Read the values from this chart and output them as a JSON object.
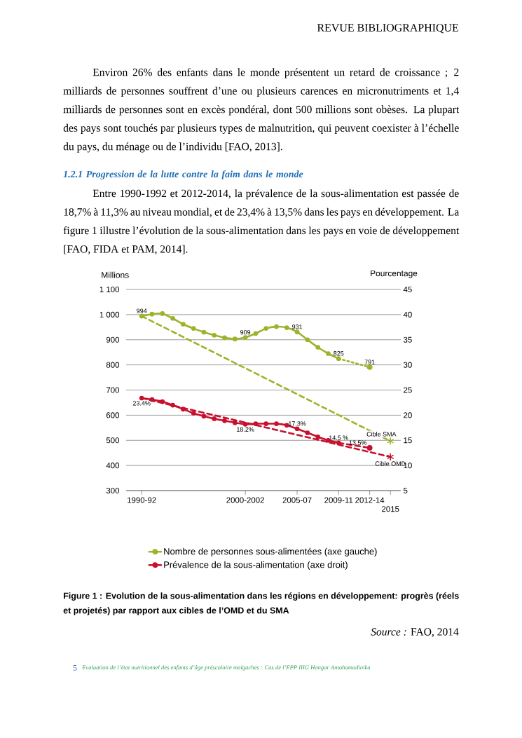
{
  "chart_data": {
    "type": "line",
    "title": "Figure 1 : Evolution de la sous-alimentation dans les régions en développement: progrès (réels et projetés) par rapport aux cibles de l’OMD et du SMA",
    "ylabel": "Millions",
    "y2label": "Pourcentage",
    "annotations": [
      "REVUE BIBLIOGRAPHIQUE",
      "Environ 26% des enfants dans le monde présentent un retard de croissance ; 2 milliards de personnes souffrent d’une ou plusieurs carences en micronutriments et 1,4 milliards de personnes sont en excès pondéral, dont 500 millions sont obèses. La plupart des pays sont touchés par plusieurs types de malnutrition, qui peuvent coexister à l’échelle du pays, du ménage ou de l’individu [FAO, 2013].",
      "1.2.1 Progression de la lutte contre la faim dans le monde",
      "Entre 1990-1992 et 2012-2014, la prévalence de la sous-alimentation est passée de 18,7% à 11,3% au niveau mondial, et de 23,4% à 13,5% dans les pays en développement. La figure 1 illustre l’évolution de la sous-alimentation dans les pays en voie de développement [FAO, FIDA et PAM, 2014].",
      "*Source :* FAO, 2014",
      "5",
      "Evaluation de l’état nutritionnel des enfants d’âge préscolaire malgaches : Cas de l’EPP IIIG Hangar Antohomadinika",
      {
        "text": "Cible SMA",
        "x": "2015",
        "y": 497
      },
      {
        "text": "Cible OMD",
        "x": "2015",
        "y": 434
      }
    ],
    "categories": [
      null,
      "1990-92",
      null,
      null,
      null,
      null,
      null,
      null,
      null,
      null,
      null,
      "2000-2002",
      null,
      null,
      null,
      null,
      "2005-07",
      null,
      null,
      null,
      "2009-11",
      null,
      null,
      "2012-14",
      null,
      "2015",
      null
    ],
    "series": [
      {
        "name": "Nombre de personnes sous-alimentées (axe gauche)",
        "color": "#9bb52a",
        "values": [
          null,
          994,
          1002,
          1004,
          985,
          962,
          945,
          930,
          918,
          908,
          903,
          909,
          925,
          945,
          952,
          948,
          931,
          900,
          870,
          845,
          825,
          null,
          null,
          null,
          null,
          null,
          null
        ],
        "value_labels": [
          null,
          "994",
          null,
          null,
          null,
          null,
          null,
          null,
          null,
          null,
          null,
          "909",
          null,
          null,
          null,
          null,
          "931",
          null,
          null,
          null,
          "825",
          null,
          null,
          null,
          null,
          null,
          null
        ]
      },
      {
        "color": "#9bb52a",
        "values": [
          null,
          null,
          null,
          null,
          null,
          null,
          null,
          null,
          null,
          null,
          null,
          null,
          null,
          null,
          null,
          null,
          null,
          null,
          null,
          null,
          825,
          null,
          null,
          791,
          null,
          null,
          null
        ],
        "value_labels": [
          null,
          null,
          null,
          null,
          null,
          null,
          null,
          null,
          null,
          null,
          null,
          null,
          null,
          null,
          null,
          null,
          null,
          null,
          null,
          null,
          null,
          null,
          null,
          "791",
          null,
          null,
          null
        ],
        "line_style": "dotted"
      },
      {
        "color": "#9bb52a",
        "values": [
          null,
          994,
          null,
          null,
          null,
          null,
          null,
          null,
          null,
          null,
          null,
          null,
          null,
          null,
          null,
          null,
          null,
          null,
          null,
          null,
          null,
          null,
          null,
          null,
          null,
          497,
          null
        ],
        "line_style": "dashed",
        "marker": "cross"
      },
      {
        "name": "Prévalence de la sous-alimentation (axe droit)",
        "color": "#c8102e",
        "axis": "y2",
        "values": [
          null,
          23.4,
          23.1,
          22.7,
          22.0,
          21.2,
          20.4,
          19.8,
          19.3,
          18.9,
          18.5,
          18.2,
          18.3,
          18.3,
          18.3,
          18.0,
          17.3,
          16.5,
          15.7,
          15.0,
          14.5,
          null,
          null,
          null,
          null,
          null,
          null
        ],
        "value_labels": [
          null,
          "23.4%",
          null,
          null,
          null,
          null,
          null,
          null,
          null,
          null,
          null,
          "18.2%",
          null,
          null,
          null,
          null,
          "17.3%",
          null,
          null,
          null,
          "14.5 %",
          null,
          null,
          null,
          null,
          null,
          null
        ]
      },
      {
        "color": "#c8102e",
        "axis": "y2",
        "values": [
          null,
          null,
          null,
          null,
          null,
          null,
          null,
          null,
          null,
          null,
          null,
          null,
          null,
          null,
          null,
          null,
          null,
          null,
          null,
          null,
          14.5,
          null,
          null,
          13.5,
          null,
          null,
          null
        ],
        "value_labels": [
          null,
          null,
          null,
          null,
          null,
          null,
          null,
          null,
          null,
          null,
          null,
          null,
          null,
          null,
          null,
          null,
          null,
          null,
          null,
          null,
          null,
          null,
          null,
          "13.5%",
          null,
          null,
          null
        ],
        "line_style": "dashed"
      },
      {
        "color": "#c8102e",
        "axis": "y2",
        "values": [
          null,
          23.4,
          null,
          null,
          null,
          null,
          null,
          null,
          null,
          null,
          null,
          null,
          null,
          null,
          null,
          null,
          null,
          null,
          null,
          null,
          null,
          null,
          null,
          null,
          null,
          11.7,
          null
        ],
        "line_style": "dashed",
        "marker": "cross"
      }
    ],
    "ylim": [
      300,
      1100
    ],
    "yticks": [
      300,
      400,
      500,
      600,
      700,
      800,
      900,
      {
        "value": 1000,
        "label": "1 000"
      },
      {
        "value": 1100,
        "label": "1 100"
      }
    ],
    "y2lim": [
      5,
      45
    ],
    "y2ticks": [
      5,
      10,
      15,
      20,
      25,
      30,
      35,
      40,
      45
    ],
    "grid": "y",
    "legend": "bottom",
    "marker": "circle",
    "line_style": "solid"
  }
}
